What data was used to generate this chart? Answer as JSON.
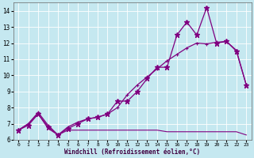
{
  "xlabel": "Windchill (Refroidissement éolien,°C)",
  "background_color": "#c5e8f0",
  "line_color": "#800080",
  "xlim": [
    -0.5,
    23.5
  ],
  "ylim": [
    6.0,
    14.5
  ],
  "yticks": [
    6,
    7,
    8,
    9,
    10,
    11,
    12,
    13,
    14
  ],
  "xticks": [
    0,
    1,
    2,
    3,
    4,
    5,
    6,
    7,
    8,
    9,
    10,
    11,
    12,
    13,
    14,
    15,
    16,
    17,
    18,
    19,
    20,
    21,
    22,
    23
  ],
  "series_main_x": [
    0,
    1,
    2,
    3,
    4,
    5,
    6,
    7,
    8,
    9,
    10,
    11,
    12,
    13,
    14,
    15,
    16,
    17,
    18,
    19,
    20,
    21,
    22,
    23
  ],
  "series_main_y": [
    6.6,
    6.9,
    7.6,
    6.8,
    6.3,
    6.7,
    7.0,
    7.3,
    7.4,
    7.6,
    8.4,
    8.4,
    9.0,
    9.8,
    10.5,
    10.5,
    12.5,
    13.3,
    12.5,
    14.2,
    12.0,
    12.1,
    11.5,
    9.4
  ],
  "series_smooth_x": [
    0,
    1,
    2,
    3,
    4,
    5,
    6,
    7,
    8,
    9,
    10,
    11,
    12,
    13,
    14,
    15,
    16,
    17,
    18,
    19,
    20,
    21,
    22,
    23
  ],
  "series_smooth_y": [
    6.6,
    7.0,
    7.7,
    6.9,
    6.3,
    6.8,
    7.1,
    7.3,
    7.4,
    7.6,
    8.0,
    8.8,
    9.4,
    9.9,
    10.4,
    10.9,
    11.3,
    11.7,
    12.0,
    11.95,
    12.05,
    12.1,
    11.55,
    9.4
  ],
  "series_flat_x": [
    0,
    1,
    2,
    3,
    4,
    5,
    6,
    7,
    8,
    9,
    10,
    11,
    12,
    13,
    14,
    15,
    16,
    17,
    18,
    19,
    20,
    21,
    22,
    23
  ],
  "series_flat_y": [
    6.6,
    7.0,
    7.6,
    6.7,
    6.3,
    6.6,
    6.6,
    6.6,
    6.6,
    6.6,
    6.6,
    6.6,
    6.6,
    6.6,
    6.6,
    6.5,
    6.5,
    6.5,
    6.5,
    6.5,
    6.5,
    6.5,
    6.5,
    6.3
  ]
}
